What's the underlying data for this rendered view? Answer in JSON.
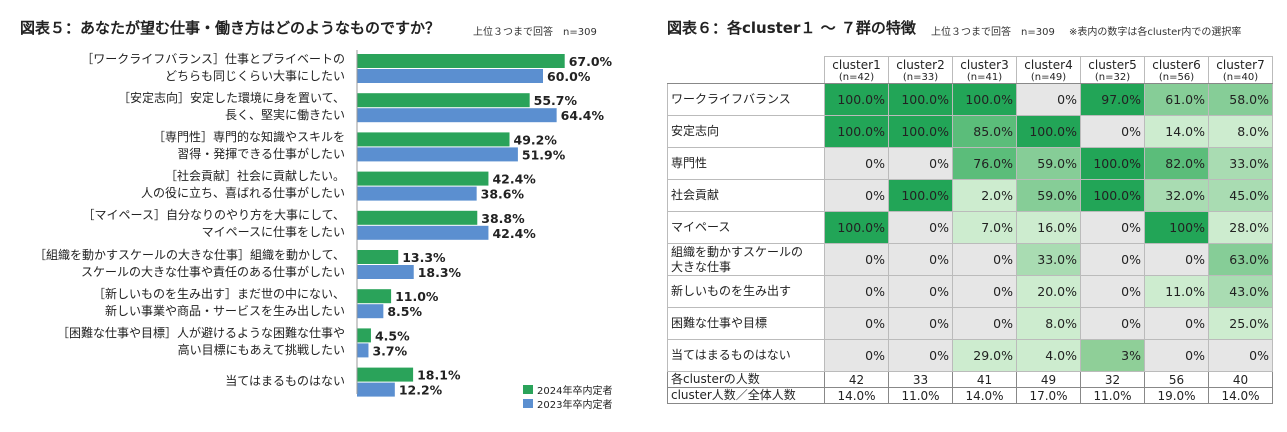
{
  "left": {
    "title": "図表５：あなたが望む仕事・働き方はどのようなものですか？",
    "note": "上位３つまで回答　n=309",
    "legend": [
      {
        "label": "2024年卒内定者",
        "color": "#2aa35a"
      },
      {
        "label": "2023年卒内定者",
        "color": "#5b8fd0"
      }
    ]
  },
  "right": {
    "title": "図表６：各cluster１ 〜 ７群の特徴",
    "note1": "上位３つまで回答　n=309",
    "note2": "※表内の数字は各cluster内での選択率",
    "footer_rows": [
      {
        "label": "各clusterの人数",
        "values": [
          "42",
          "33",
          "41",
          "49",
          "32",
          "56",
          "40"
        ]
      },
      {
        "label": "cluster人数／全体人数",
        "values": [
          "14.0%",
          "11.0%",
          "14.0%",
          "17.0%",
          "11.0%",
          "19.0%",
          "14.0%"
        ]
      }
    ]
  },
  "chart_data": [
    {
      "type": "bar",
      "orientation": "horizontal",
      "title": "図表５：あなたが望む仕事・働き方はどのようなものですか？",
      "categories": [
        [
          "［ワークライフバランス］仕事とプライベートの",
          "どちらも同じくらい大事にしたい"
        ],
        [
          "［安定志向］安定した環境に身を置いて、",
          "長く、堅実に働きたい"
        ],
        [
          "［専門性］専門的な知識やスキルを",
          "習得・発揮できる仕事がしたい"
        ],
        [
          "［社会貢献］社会に貢献したい。",
          "人の役に立ち、喜ばれる仕事がしたい"
        ],
        [
          "［マイペース］自分なりのやり方を大事にして、",
          "マイペースに仕事をしたい"
        ],
        [
          "［組織を動かすスケールの大きな仕事］組織を動かして、",
          "スケールの大きな仕事や責任のある仕事がしたい"
        ],
        [
          "［新しいものを生み出す］まだ世の中にない、",
          "新しい事業や商品・サービスを生み出したい"
        ],
        [
          "［困難な仕事や目標］人が避けるような困難な仕事や",
          "高い目標にもあえて挑戦したい"
        ],
        [
          "当てはまるものはない"
        ]
      ],
      "series": [
        {
          "name": "2024年卒内定者",
          "color": "#2aa35a",
          "values": [
            67.0,
            55.7,
            49.2,
            42.4,
            38.8,
            13.3,
            11.0,
            4.5,
            18.1
          ],
          "labels": [
            "67.0%",
            "55.7%",
            "49.2%",
            "42.4%",
            "38.8%",
            "13.3%",
            "11.0%",
            "4.5%",
            "18.1%"
          ]
        },
        {
          "name": "2023年卒内定者",
          "color": "#5b8fd0",
          "values": [
            60.0,
            64.4,
            51.9,
            38.6,
            42.4,
            18.3,
            8.5,
            3.7,
            12.2
          ],
          "labels": [
            "60.0%",
            "64.4%",
            "51.9%",
            "38.6%",
            "42.4%",
            "18.3%",
            "8.5%",
            "3.7%",
            "12.2%"
          ]
        }
      ],
      "xlim": [
        0,
        100
      ],
      "legend_position": "bottom-right"
    },
    {
      "type": "heatmap",
      "title": "図表６：各cluster１ 〜 ７群の特徴",
      "columns": [
        {
          "name": "cluster1",
          "n": "(n=42)"
        },
        {
          "name": "cluster2",
          "n": "(n=33)"
        },
        {
          "name": "cluster3",
          "n": "(n=41)"
        },
        {
          "name": "cluster4",
          "n": "(n=49)"
        },
        {
          "name": "cluster5",
          "n": "(n=32)"
        },
        {
          "name": "cluster6",
          "n": "(n=56)"
        },
        {
          "name": "cluster7",
          "n": "(n=40)"
        }
      ],
      "rows": [
        {
          "label": [
            "ワークライフバランス"
          ],
          "values": [
            "100.0%",
            "100.0%",
            "100.0%",
            "0%",
            "97.0%",
            "61.0%",
            "58.0%"
          ]
        },
        {
          "label": [
            "安定志向"
          ],
          "values": [
            "100.0%",
            "100.0%",
            "85.0%",
            "100.0%",
            "0%",
            "14.0%",
            "8.0%"
          ]
        },
        {
          "label": [
            "専門性"
          ],
          "values": [
            "0%",
            "0%",
            "76.0%",
            "59.0%",
            "100.0%",
            "82.0%",
            "33.0%"
          ]
        },
        {
          "label": [
            "社会貢献"
          ],
          "values": [
            "0%",
            "100.0%",
            "2.0%",
            "59.0%",
            "100.0%",
            "32.0%",
            "45.0%"
          ]
        },
        {
          "label": [
            "マイペース"
          ],
          "values": [
            "100.0%",
            "0%",
            "7.0%",
            "16.0%",
            "0%",
            "100%",
            "28.0%"
          ]
        },
        {
          "label": [
            "組織を動かすスケールの",
            "大きな仕事"
          ],
          "values": [
            "0%",
            "0%",
            "0%",
            "33.0%",
            "0%",
            "0%",
            "63.0%"
          ]
        },
        {
          "label": [
            "新しいものを生み出す"
          ],
          "values": [
            "0%",
            "0%",
            "0%",
            "20.0%",
            "0%",
            "11.0%",
            "43.0%"
          ]
        },
        {
          "label": [
            "困難な仕事や目標"
          ],
          "values": [
            "0%",
            "0%",
            "0%",
            "8.0%",
            "0%",
            "0%",
            "25.0%"
          ]
        },
        {
          "label": [
            "当てはまるものはない"
          ],
          "values": [
            "0%",
            "0%",
            "29.0%",
            "4.0%",
            "3%",
            "0%",
            "0%"
          ]
        }
      ]
    }
  ]
}
